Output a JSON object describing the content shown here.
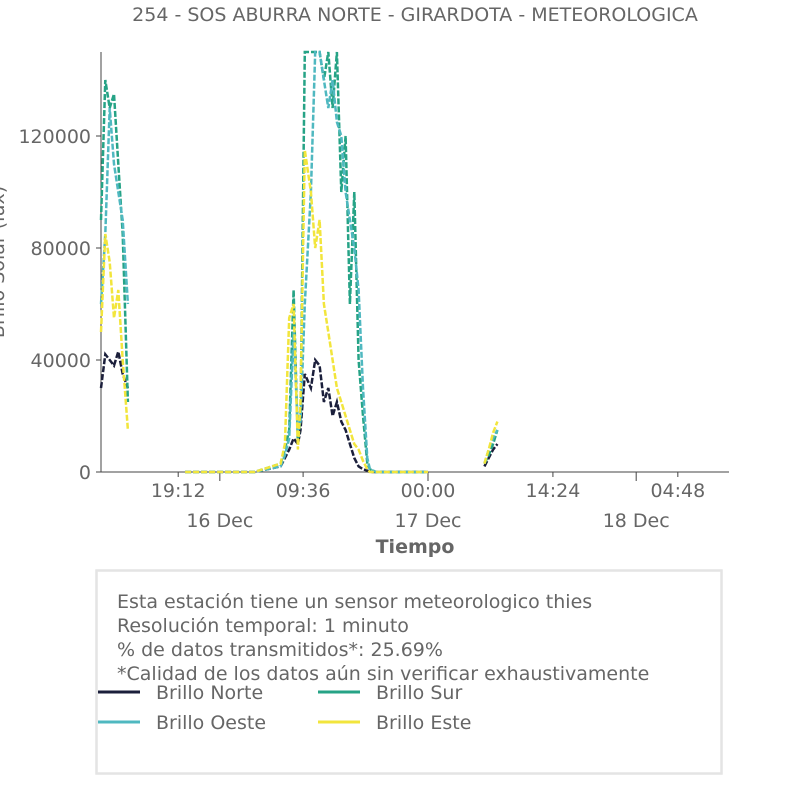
{
  "chart_data": {
    "type": "line",
    "title": "254 - SOS ABURRA NORTE - GIRARDOTA - METEOROLOGICA",
    "xlabel": "Tiempo",
    "ylabel": "Brillo Solar (lux)",
    "x": [
      -13.7,
      -13.2,
      -12.7,
      -12.2,
      -11.7,
      -11.2,
      -10.6,
      -10.0,
      -4,
      0,
      4,
      7,
      7.5,
      8,
      8.5,
      9,
      9.3,
      9.8,
      10.5,
      11,
      11.5,
      12,
      12.5,
      13,
      13.5,
      14,
      14.5,
      15,
      15.5,
      16,
      16.5,
      17,
      17.3,
      18,
      19,
      21,
      24,
      25,
      30.5,
      31,
      31.5,
      32
    ],
    "series": [
      {
        "name": "Brillo Norte",
        "color": "#1b1f3b",
        "values": [
          30000,
          42000,
          40000,
          38000,
          43000,
          35000,
          30000,
          null,
          0,
          0,
          0,
          2000,
          5000,
          8000,
          12000,
          10000,
          15000,
          35000,
          30000,
          40000,
          38000,
          25000,
          30000,
          20000,
          25000,
          18000,
          15000,
          10000,
          5000,
          2000,
          1000,
          500,
          0,
          0,
          0,
          0,
          0,
          null,
          2000,
          5000,
          8000,
          10000
        ]
      },
      {
        "name": "Brillo Sur",
        "color": "#26a386",
        "values": [
          90000,
          140000,
          130000,
          135000,
          110000,
          85000,
          25000,
          null,
          0,
          0,
          0,
          3000,
          8000,
          15000,
          65000,
          10000,
          20000,
          150000,
          150000,
          150000,
          150000,
          140000,
          150000,
          130000,
          150000,
          100000,
          120000,
          60000,
          100000,
          40000,
          20000,
          3000,
          1000,
          0,
          0,
          0,
          0,
          null,
          3000,
          6000,
          10000,
          15000
        ]
      },
      {
        "name": "Brillo Oeste",
        "color": "#4fb8c0",
        "values": [
          60000,
          85000,
          130000,
          110000,
          100000,
          90000,
          60000,
          null,
          0,
          0,
          0,
          2000,
          6000,
          12000,
          50000,
          15000,
          18000,
          60000,
          100000,
          150000,
          150000,
          140000,
          130000,
          140000,
          125000,
          120000,
          100000,
          90000,
          80000,
          65000,
          30000,
          5000,
          1000,
          0,
          0,
          0,
          0,
          null,
          3000,
          8000,
          12000,
          15000
        ]
      },
      {
        "name": "Brillo Este",
        "color": "#f2e53c",
        "values": [
          50000,
          85000,
          75000,
          55000,
          65000,
          40000,
          15000,
          null,
          0,
          0,
          0,
          3000,
          10000,
          55000,
          60000,
          8000,
          25000,
          115000,
          100000,
          80000,
          90000,
          60000,
          50000,
          40000,
          30000,
          25000,
          20000,
          15000,
          10000,
          8000,
          4000,
          1000,
          0,
          0,
          0,
          0,
          0,
          null,
          3000,
          8000,
          14000,
          18000
        ]
      }
    ],
    "xlim": [
      -13.7,
      58.7
    ],
    "xticks": [
      {
        "value": -4.8,
        "label": "19:12"
      },
      {
        "value": 9.6,
        "label": "09:36"
      },
      {
        "value": 24,
        "label": "00:00"
      },
      {
        "value": 38.4,
        "label": "14:24"
      },
      {
        "value": 52.8,
        "label": "04:48"
      }
    ],
    "xdateticks": [
      {
        "value": 0,
        "label": "16 Dec"
      },
      {
        "value": 24,
        "label": "17 Dec"
      },
      {
        "value": 48,
        "label": "18 Dec"
      }
    ],
    "ylim": [
      0,
      150000
    ],
    "yticks": [
      0,
      40000,
      80000,
      120000
    ],
    "grid": false
  },
  "info": {
    "lines": [
      "Esta estación tiene un sensor meteorologico thies",
      "Resolución temporal: 1 minuto",
      "% de datos transmitidos*: 25.69%",
      "*Calidad de los datos aún sin verificar exhaustivamente"
    ]
  }
}
